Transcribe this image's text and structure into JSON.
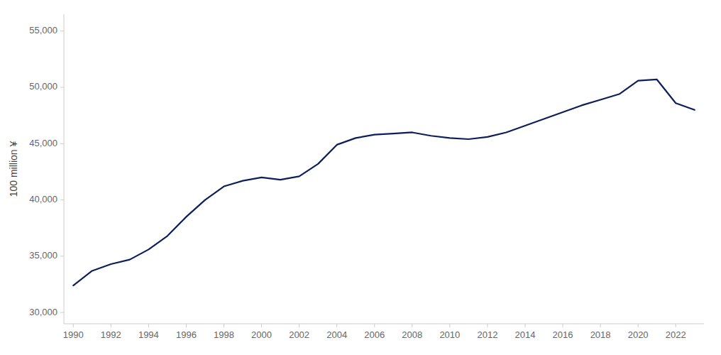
{
  "chart_data": {
    "type": "line",
    "y_label": "100 million ¥",
    "x": [
      1990,
      1991,
      1992,
      1993,
      1994,
      1995,
      1996,
      1997,
      1998,
      1999,
      2000,
      2001,
      2002,
      2003,
      2004,
      2005,
      2006,
      2007,
      2008,
      2009,
      2010,
      2011,
      2012,
      2013,
      2014,
      2015,
      2016,
      2017,
      2018,
      2019,
      2020,
      2021,
      2022,
      2023
    ],
    "values": [
      32400,
      33700,
      34300,
      34700,
      35600,
      36800,
      38500,
      40000,
      41200,
      41700,
      42000,
      41800,
      42100,
      43200,
      44900,
      45500,
      45800,
      45900,
      46000,
      45700,
      45500,
      45400,
      45600,
      46000,
      46600,
      47200,
      47800,
      48400,
      48900,
      49400,
      50600,
      50700,
      48600,
      48000
    ],
    "color": "#0d1e5c",
    "xlim": [
      1989.5,
      2023.5
    ],
    "xticks": [
      1990,
      1992,
      1994,
      1996,
      1998,
      2000,
      2002,
      2004,
      2006,
      2008,
      2010,
      2012,
      2014,
      2016,
      2018,
      2020,
      2022
    ],
    "ylim": [
      29000,
      56500
    ],
    "yticks": [
      {
        "value": 30000,
        "label": "30,000"
      },
      {
        "value": 35000,
        "label": "35,000"
      },
      {
        "value": 40000,
        "label": "40,000"
      },
      {
        "value": 45000,
        "label": "45,000"
      },
      {
        "value": 50000,
        "label": "50,000"
      },
      {
        "value": 55000,
        "label": "55,000"
      }
    ],
    "grid": false
  }
}
